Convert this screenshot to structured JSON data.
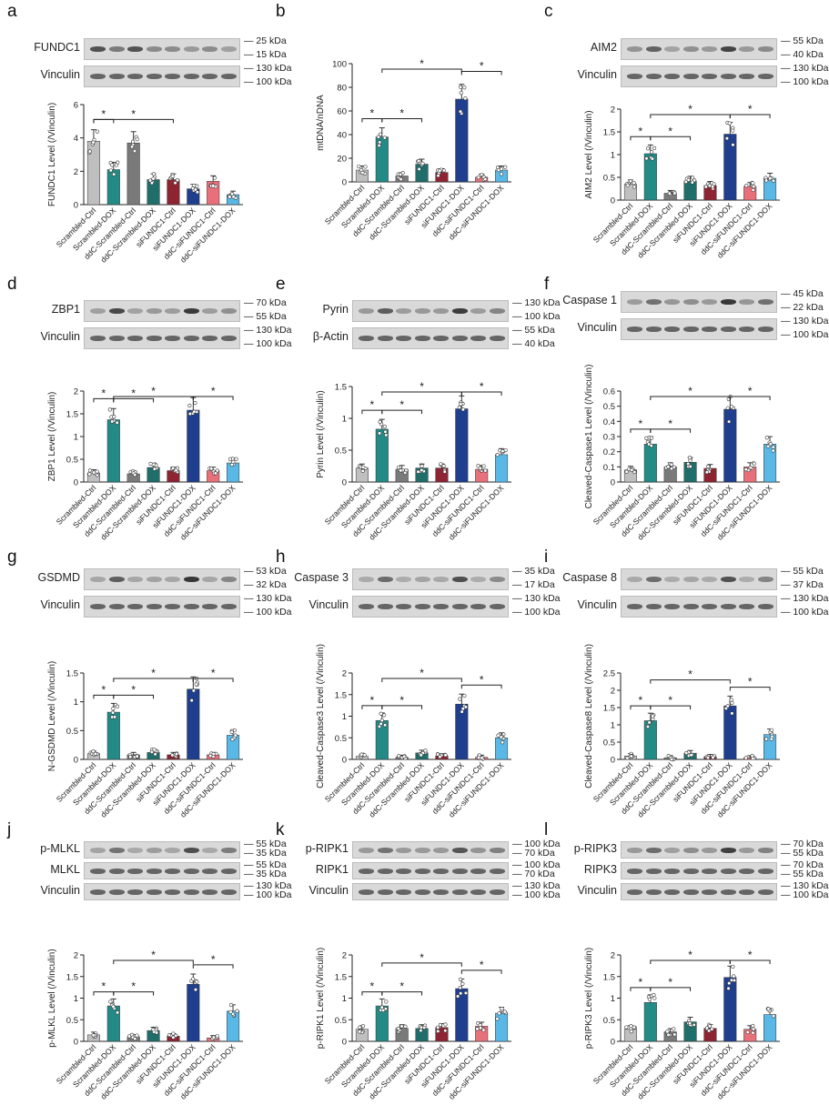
{
  "figure": {
    "categories": [
      "Scrambled-Ctrl",
      "Scrambled-DOX",
      "ddC-Scrambled-Ctrl",
      "ddC-Scrambled-DOX",
      "siFUNDC1-Ctrl",
      "siFUNDC1-DOX",
      "ddC-siFUNDC1-Ctrl",
      "ddC-siFUNDC1-DOX"
    ],
    "colors": [
      "#bfbfbf",
      "#238a86",
      "#7a7a7a",
      "#1f6e6a",
      "#8e2432",
      "#1f3f8e",
      "#e8707a",
      "#59b8e6"
    ],
    "significance_symbol": "*"
  },
  "chart_data": [
    {
      "id": "a",
      "type": "bar",
      "panel_label": "a",
      "ylabel": "FUNDC1 Level (/Vinculin)",
      "ylim": [
        0,
        6
      ],
      "yticks": [
        0,
        2,
        4,
        6
      ],
      "values": [
        3.8,
        2.1,
        3.7,
        1.5,
        1.5,
        0.95,
        1.4,
        0.6
      ],
      "blots": [
        {
          "label": "FUNDC1",
          "markers": [
            "25 kDa",
            "15 kDa"
          ]
        },
        {
          "label": "Vinculin",
          "markers": [
            "130 kDa",
            "100 kDa"
          ]
        }
      ],
      "brackets": [
        [
          0,
          1
        ],
        [
          0,
          4
        ]
      ]
    },
    {
      "id": "b",
      "type": "bar",
      "panel_label": "b",
      "ylabel": "mtDNA/nDNA",
      "ylim": [
        0,
        100
      ],
      "yticks": [
        0,
        20,
        40,
        60,
        80,
        100
      ],
      "values": [
        10,
        38,
        5,
        15,
        8,
        70,
        4,
        10
      ],
      "blots": [],
      "brackets": [
        [
          0,
          1
        ],
        [
          1,
          3
        ],
        [
          1,
          5
        ],
        [
          5,
          7
        ]
      ]
    },
    {
      "id": "c",
      "type": "bar",
      "panel_label": "c",
      "ylabel": "AIM2 Level (/Vinculin)",
      "ylim": [
        0,
        2.0
      ],
      "yticks": [
        0,
        0.5,
        1.0,
        1.5,
        2.0
      ],
      "values": [
        0.35,
        1.02,
        0.15,
        0.42,
        0.32,
        1.45,
        0.3,
        0.48
      ],
      "blots": [
        {
          "label": "AIM2",
          "markers": [
            "55 kDa",
            "40 kDa"
          ]
        },
        {
          "label": "Vinculin",
          "markers": [
            "130 kDa",
            "100 kDa"
          ]
        }
      ],
      "brackets": [
        [
          0,
          1
        ],
        [
          1,
          3
        ],
        [
          1,
          5
        ],
        [
          5,
          7
        ]
      ]
    },
    {
      "id": "d",
      "type": "bar",
      "panel_label": "d",
      "ylabel": "ZBP1 Level (/Vinculin)",
      "ylim": [
        0,
        2.0
      ],
      "yticks": [
        0,
        0.5,
        1.0,
        1.5,
        2.0
      ],
      "values": [
        0.2,
        1.37,
        0.18,
        0.32,
        0.25,
        1.58,
        0.25,
        0.42
      ],
      "blots": [
        {
          "label": "ZBP1",
          "markers": [
            "70 kDa",
            "55 kDa"
          ]
        },
        {
          "label": "Vinculin",
          "markers": [
            "130 kDa",
            "100 kDa"
          ]
        }
      ],
      "brackets": [
        [
          0,
          1
        ],
        [
          1,
          3
        ],
        [
          1,
          5
        ],
        [
          5,
          7
        ]
      ]
    },
    {
      "id": "e",
      "type": "bar",
      "panel_label": "e",
      "ylabel": "Pyrin Level (/Vinculin)",
      "ylim": [
        0,
        1.5
      ],
      "yticks": [
        0,
        0.5,
        1.0,
        1.5
      ],
      "values": [
        0.22,
        0.83,
        0.2,
        0.22,
        0.22,
        1.15,
        0.2,
        0.43
      ],
      "blots": [
        {
          "label": "Pyrin",
          "markers": [
            "130 kDa",
            "100 kDa"
          ]
        },
        {
          "label": "β-Actin",
          "markers": [
            "55 kDa",
            "40 kDa"
          ]
        }
      ],
      "brackets": [
        [
          0,
          1
        ],
        [
          1,
          3
        ],
        [
          1,
          5
        ],
        [
          5,
          7
        ]
      ]
    },
    {
      "id": "f",
      "type": "bar",
      "panel_label": "f",
      "ylabel": "Cleaved-Caspase1 Level (/Vinculin)",
      "ylim": [
        0,
        0.6
      ],
      "yticks": [
        0,
        0.1,
        0.2,
        0.3,
        0.4,
        0.5,
        0.6
      ],
      "values": [
        0.08,
        0.25,
        0.1,
        0.13,
        0.09,
        0.48,
        0.1,
        0.25
      ],
      "blots": [
        {
          "label": "Caspase 1",
          "markers": [
            "45 kDa",
            "22 kDa"
          ]
        },
        {
          "label": "Vinculin",
          "markers": [
            "130 kDa",
            "100 kDa"
          ]
        }
      ],
      "brackets": [
        [
          0,
          1
        ],
        [
          1,
          3
        ],
        [
          1,
          5
        ],
        [
          5,
          7
        ]
      ]
    },
    {
      "id": "g",
      "type": "bar",
      "panel_label": "g",
      "ylabel": "N-GSDMD Level (/Vinculin)",
      "ylim": [
        0,
        1.5
      ],
      "yticks": [
        0,
        0.5,
        1.0,
        1.5
      ],
      "values": [
        0.1,
        0.82,
        0.08,
        0.12,
        0.08,
        1.22,
        0.08,
        0.42
      ],
      "blots": [
        {
          "label": "GSDMD",
          "markers": [
            "53 kDa",
            "32 kDa"
          ]
        },
        {
          "label": "Vinculin",
          "markers": [
            "130 kDa",
            "100 kDa"
          ]
        }
      ],
      "brackets": [
        [
          0,
          1
        ],
        [
          1,
          3
        ],
        [
          1,
          5
        ],
        [
          5,
          7
        ]
      ]
    },
    {
      "id": "h",
      "type": "bar",
      "panel_label": "h",
      "ylabel": "Cleaved-Caspase3 Level (/Vinculin)",
      "ylim": [
        0,
        2.0
      ],
      "yticks": [
        0,
        0.5,
        1.0,
        1.5,
        2.0
      ],
      "values": [
        0.07,
        0.9,
        0.05,
        0.15,
        0.08,
        1.28,
        0.05,
        0.5
      ],
      "blots": [
        {
          "label": "Caspase 3",
          "markers": [
            "35 kDa",
            "17 kDa"
          ]
        },
        {
          "label": "Vinculin",
          "markers": [
            "130 kDa",
            "100 kDa"
          ]
        }
      ],
      "brackets": [
        [
          0,
          1
        ],
        [
          1,
          3
        ],
        [
          1,
          5
        ],
        [
          5,
          7
        ]
      ]
    },
    {
      "id": "i",
      "type": "bar",
      "panel_label": "i",
      "ylabel": "Cleaved-Caspase8 Level (/Vinculin)",
      "ylim": [
        0,
        2.5
      ],
      "yticks": [
        0,
        0.5,
        1.0,
        1.5,
        2.0,
        2.5
      ],
      "values": [
        0.1,
        1.12,
        0.05,
        0.18,
        0.08,
        1.55,
        0.05,
        0.72
      ],
      "blots": [
        {
          "label": "Caspase 8",
          "markers": [
            "55 kDa",
            "37 kDa"
          ]
        },
        {
          "label": "Vinculin",
          "markers": [
            "130 kDa",
            "100 kDa"
          ]
        }
      ],
      "brackets": [
        [
          0,
          1
        ],
        [
          1,
          3
        ],
        [
          1,
          5
        ],
        [
          5,
          7
        ]
      ]
    },
    {
      "id": "j",
      "type": "bar",
      "panel_label": "j",
      "ylabel": "p-MLKL Level (/Vinculin)",
      "ylim": [
        0,
        2.0
      ],
      "yticks": [
        0,
        0.5,
        1.0,
        1.5,
        2.0
      ],
      "values": [
        0.15,
        0.82,
        0.1,
        0.25,
        0.12,
        1.32,
        0.08,
        0.7
      ],
      "blots": [
        {
          "label": "p-MLKL",
          "markers": [
            "55 kDa",
            "35 kDa"
          ]
        },
        {
          "label": "MLKL",
          "markers": [
            "55 kDa",
            "35 kDa"
          ]
        },
        {
          "label": "Vinculin",
          "markers": [
            "130 kDa",
            "100 kDa"
          ]
        }
      ],
      "brackets": [
        [
          0,
          1
        ],
        [
          1,
          3
        ],
        [
          1,
          5
        ],
        [
          5,
          7
        ]
      ]
    },
    {
      "id": "k",
      "type": "bar",
      "panel_label": "k",
      "ylabel": "p-RIPK1 Level (/Vinculin)",
      "ylim": [
        0,
        2.0
      ],
      "yticks": [
        0,
        0.5,
        1.0,
        1.5,
        2.0
      ],
      "values": [
        0.28,
        0.82,
        0.3,
        0.3,
        0.32,
        1.22,
        0.35,
        0.65
      ],
      "blots": [
        {
          "label": "p-RIPK1",
          "markers": [
            "100 kDa",
            "70 kDa"
          ]
        },
        {
          "label": "RIPK1",
          "markers": [
            "100 kDa",
            "70 kDa"
          ]
        },
        {
          "label": "Vinculin",
          "markers": [
            "130 kDa",
            "100 kDa"
          ]
        }
      ],
      "brackets": [
        [
          0,
          1
        ],
        [
          1,
          3
        ],
        [
          1,
          5
        ],
        [
          5,
          7
        ]
      ]
    },
    {
      "id": "l",
      "type": "bar",
      "panel_label": "l",
      "ylabel": "p-RIPK3 Level (/Vinculin)",
      "ylim": [
        0,
        2.0
      ],
      "yticks": [
        0,
        0.5,
        1.0,
        1.5,
        2.0
      ],
      "values": [
        0.28,
        0.9,
        0.22,
        0.45,
        0.3,
        1.48,
        0.28,
        0.62
      ],
      "blots": [
        {
          "label": "p-RIPK3",
          "markers": [
            "70 kDa",
            "55 kDa"
          ]
        },
        {
          "label": "RIPK3",
          "markers": [
            "70 kDa",
            "55 kDa"
          ]
        },
        {
          "label": "Vinculin",
          "markers": [
            "130 kDa",
            "100 kDa"
          ]
        }
      ],
      "brackets": [
        [
          0,
          1
        ],
        [
          1,
          3
        ],
        [
          1,
          5
        ],
        [
          5,
          7
        ]
      ]
    }
  ]
}
